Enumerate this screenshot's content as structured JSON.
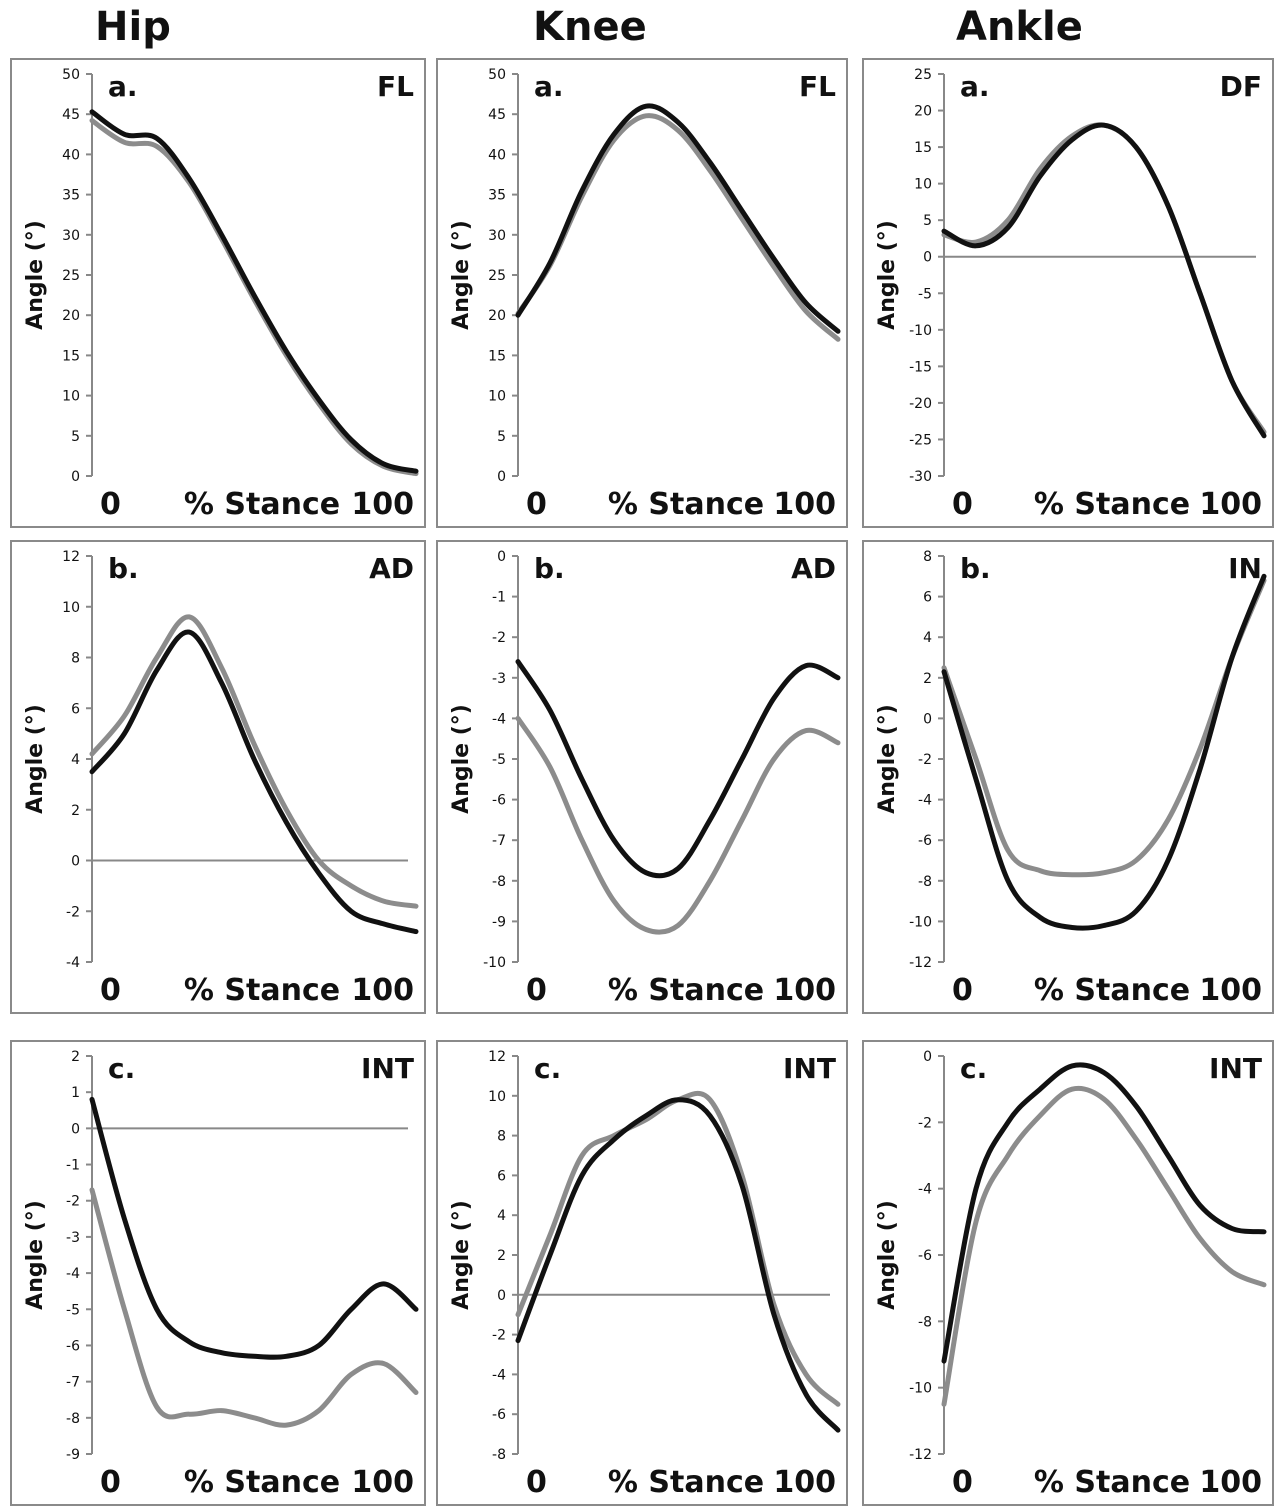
{
  "column_titles": [
    "Hip",
    "Knee",
    "Ankle"
  ],
  "colors": {
    "series_black": "#111111",
    "series_gray": "#8c8c8c",
    "axis": "#888888",
    "zero_line": "#888888"
  },
  "chart_data": [
    {
      "type": "line",
      "joint": "Hip",
      "panel_letter": "a.",
      "corner_label": "FL",
      "ylabel": "Angle (°)",
      "x_left_label": "0",
      "x_center_label": "% Stance",
      "x_right_label": "100",
      "ylim": [
        0,
        50
      ],
      "yticks": [
        "0",
        "5",
        "10",
        "15",
        "20",
        "25",
        "30",
        "35",
        "40",
        "45",
        "50"
      ],
      "zero_line": false,
      "x": [
        0,
        10,
        20,
        30,
        40,
        50,
        60,
        70,
        80,
        90,
        100
      ],
      "series": [
        {
          "color": "#111111",
          "values": [
            45.3,
            42.5,
            42,
            37,
            30,
            22.5,
            15.5,
            9.5,
            4.5,
            1.5,
            0.6
          ]
        },
        {
          "color": "#8c8c8c",
          "values": [
            44.2,
            41.5,
            41,
            36.5,
            29.5,
            22,
            15,
            9,
            4,
            1.2,
            0.3
          ]
        }
      ]
    },
    {
      "type": "line",
      "joint": "Knee",
      "panel_letter": "a.",
      "corner_label": "FL",
      "ylabel": "Angle (°)",
      "x_left_label": "0",
      "x_center_label": "% Stance",
      "x_right_label": "100",
      "ylim": [
        0,
        50
      ],
      "yticks": [
        "0",
        "5",
        "10",
        "15",
        "20",
        "25",
        "30",
        "35",
        "40",
        "45",
        "50"
      ],
      "zero_line": false,
      "x": [
        0,
        10,
        20,
        30,
        40,
        50,
        60,
        70,
        80,
        90,
        100
      ],
      "series": [
        {
          "color": "#111111",
          "values": [
            20,
            26.5,
            35.5,
            42.5,
            46,
            44,
            39,
            33,
            27,
            21.5,
            18
          ]
        },
        {
          "color": "#8c8c8c",
          "values": [
            20.2,
            26.2,
            34.8,
            41.8,
            44.8,
            43,
            38,
            32,
            26,
            20.5,
            17
          ]
        }
      ]
    },
    {
      "type": "line",
      "joint": "Ankle",
      "panel_letter": "a.",
      "corner_label": "DF",
      "ylabel": "Angle (°)",
      "x_left_label": "0",
      "x_center_label": "% Stance",
      "x_right_label": "100",
      "ylim": [
        -30,
        25
      ],
      "yticks": [
        "-30",
        "-25",
        "-20",
        "-15",
        "-10",
        "-5",
        "0",
        "5",
        "10",
        "15",
        "20",
        "25"
      ],
      "zero_line": true,
      "x": [
        0,
        10,
        20,
        30,
        40,
        50,
        60,
        70,
        80,
        90,
        100
      ],
      "series": [
        {
          "color": "#111111",
          "values": [
            3.5,
            1.5,
            4,
            11,
            16,
            18,
            15,
            7,
            -5,
            -17,
            -24.5
          ]
        },
        {
          "color": "#8c8c8c",
          "values": [
            3,
            2,
            5,
            12,
            16.5,
            18,
            15,
            7,
            -5,
            -17,
            -24
          ]
        }
      ]
    },
    {
      "type": "line",
      "joint": "Hip",
      "panel_letter": "b.",
      "corner_label": "AD",
      "ylabel": "Angle (°)",
      "x_left_label": "0",
      "x_center_label": "% Stance",
      "x_right_label": "100",
      "ylim": [
        -4,
        12
      ],
      "yticks": [
        "-4",
        "-2",
        "0",
        "2",
        "4",
        "6",
        "8",
        "10",
        "12"
      ],
      "zero_line": true,
      "x": [
        0,
        10,
        20,
        30,
        40,
        50,
        60,
        70,
        80,
        90,
        100
      ],
      "series": [
        {
          "color": "#111111",
          "values": [
            3.5,
            5,
            7.5,
            9,
            7,
            4,
            1.5,
            -0.5,
            -2,
            -2.5,
            -2.8
          ]
        },
        {
          "color": "#8c8c8c",
          "values": [
            4.2,
            5.7,
            8,
            9.6,
            7.6,
            4.6,
            2,
            0,
            -1,
            -1.6,
            -1.8
          ]
        }
      ]
    },
    {
      "type": "line",
      "joint": "Knee",
      "panel_letter": "b.",
      "corner_label": "AD",
      "ylabel": "Angle (°)",
      "x_left_label": "0",
      "x_center_label": "% Stance",
      "x_right_label": "100",
      "ylim": [
        -10,
        0
      ],
      "yticks": [
        "-10",
        "-9",
        "-8",
        "-7",
        "-6",
        "-5",
        "-4",
        "-3",
        "-2",
        "-1",
        "0"
      ],
      "zero_line": false,
      "x": [
        0,
        10,
        20,
        30,
        40,
        50,
        60,
        70,
        80,
        90,
        100
      ],
      "series": [
        {
          "color": "#111111",
          "values": [
            -2.6,
            -3.8,
            -5.5,
            -7,
            -7.8,
            -7.7,
            -6.5,
            -5,
            -3.5,
            -2.7,
            -3
          ]
        },
        {
          "color": "#8c8c8c",
          "values": [
            -4,
            -5.2,
            -7,
            -8.5,
            -9.2,
            -9.1,
            -8,
            -6.5,
            -5,
            -4.3,
            -4.6
          ]
        }
      ]
    },
    {
      "type": "line",
      "joint": "Ankle",
      "panel_letter": "b.",
      "corner_label": "IN",
      "ylabel": "Angle (°)",
      "x_left_label": "0",
      "x_center_label": "% Stance",
      "x_right_label": "100",
      "ylim": [
        -12,
        8
      ],
      "yticks": [
        "-12",
        "-10",
        "-8",
        "-6",
        "-4",
        "-2",
        "0",
        "2",
        "4",
        "6",
        "8"
      ],
      "zero_line": false,
      "x": [
        0,
        10,
        20,
        30,
        40,
        50,
        60,
        70,
        80,
        90,
        100
      ],
      "series": [
        {
          "color": "#111111",
          "values": [
            2.3,
            -3,
            -8,
            -9.8,
            -10.3,
            -10.2,
            -9.5,
            -7,
            -2.5,
            3,
            7
          ]
        },
        {
          "color": "#8c8c8c",
          "values": [
            2.5,
            -2,
            -6.5,
            -7.5,
            -7.7,
            -7.6,
            -7,
            -5,
            -1.5,
            3,
            6.8
          ]
        }
      ]
    },
    {
      "type": "line",
      "joint": "Hip",
      "panel_letter": "c.",
      "corner_label": "INT",
      "ylabel": "Angle (°)",
      "x_left_label": "0",
      "x_center_label": "% Stance",
      "x_right_label": "100",
      "ylim": [
        -9,
        2
      ],
      "yticks": [
        "-9",
        "-8",
        "-7",
        "-6",
        "-5",
        "-4",
        "-3",
        "-2",
        "-1",
        "0",
        "1",
        "2"
      ],
      "zero_line": true,
      "x": [
        0,
        10,
        20,
        30,
        40,
        50,
        60,
        70,
        80,
        90,
        100
      ],
      "series": [
        {
          "color": "#111111",
          "values": [
            0.8,
            -2.5,
            -5,
            -5.9,
            -6.2,
            -6.3,
            -6.3,
            -6,
            -5,
            -4.3,
            -5
          ]
        },
        {
          "color": "#8c8c8c",
          "values": [
            -1.7,
            -5,
            -7.7,
            -7.9,
            -7.8,
            -8,
            -8.2,
            -7.8,
            -6.8,
            -6.5,
            -7.3
          ]
        }
      ]
    },
    {
      "type": "line",
      "joint": "Knee",
      "panel_letter": "c.",
      "corner_label": "INT",
      "ylabel": "Angle (°)",
      "x_left_label": "0",
      "x_center_label": "% Stance",
      "x_right_label": "100",
      "ylim": [
        -8,
        12
      ],
      "yticks": [
        "-8",
        "-6",
        "-4",
        "-2",
        "0",
        "2",
        "4",
        "6",
        "8",
        "10",
        "12"
      ],
      "zero_line": true,
      "x": [
        0,
        10,
        20,
        30,
        40,
        50,
        60,
        70,
        80,
        90,
        100
      ],
      "series": [
        {
          "color": "#111111",
          "values": [
            -2.3,
            2,
            6,
            7.8,
            9,
            9.8,
            9,
            5.5,
            -1,
            -5,
            -6.8
          ]
        },
        {
          "color": "#8c8c8c",
          "values": [
            -1,
            3,
            7,
            8,
            8.8,
            9.8,
            9.8,
            6,
            -0.5,
            -4,
            -5.5
          ]
        }
      ]
    },
    {
      "type": "line",
      "joint": "Ankle",
      "panel_letter": "c.",
      "corner_label": "INT",
      "ylabel": "Angle (°)",
      "x_left_label": "0",
      "x_center_label": "% Stance",
      "x_right_label": "100",
      "ylim": [
        -12,
        0
      ],
      "yticks": [
        "-12",
        "-10",
        "-8",
        "-6",
        "-4",
        "-2",
        "0"
      ],
      "zero_line": false,
      "x": [
        0,
        10,
        20,
        30,
        40,
        50,
        60,
        70,
        80,
        90,
        100
      ],
      "series": [
        {
          "color": "#111111",
          "values": [
            -9.2,
            -4,
            -2,
            -1,
            -0.3,
            -0.5,
            -1.5,
            -3,
            -4.5,
            -5.2,
            -5.3
          ]
        },
        {
          "color": "#8c8c8c",
          "values": [
            -10.5,
            -5,
            -3,
            -1.8,
            -1,
            -1.3,
            -2.5,
            -4,
            -5.5,
            -6.5,
            -6.9
          ]
        }
      ]
    }
  ]
}
